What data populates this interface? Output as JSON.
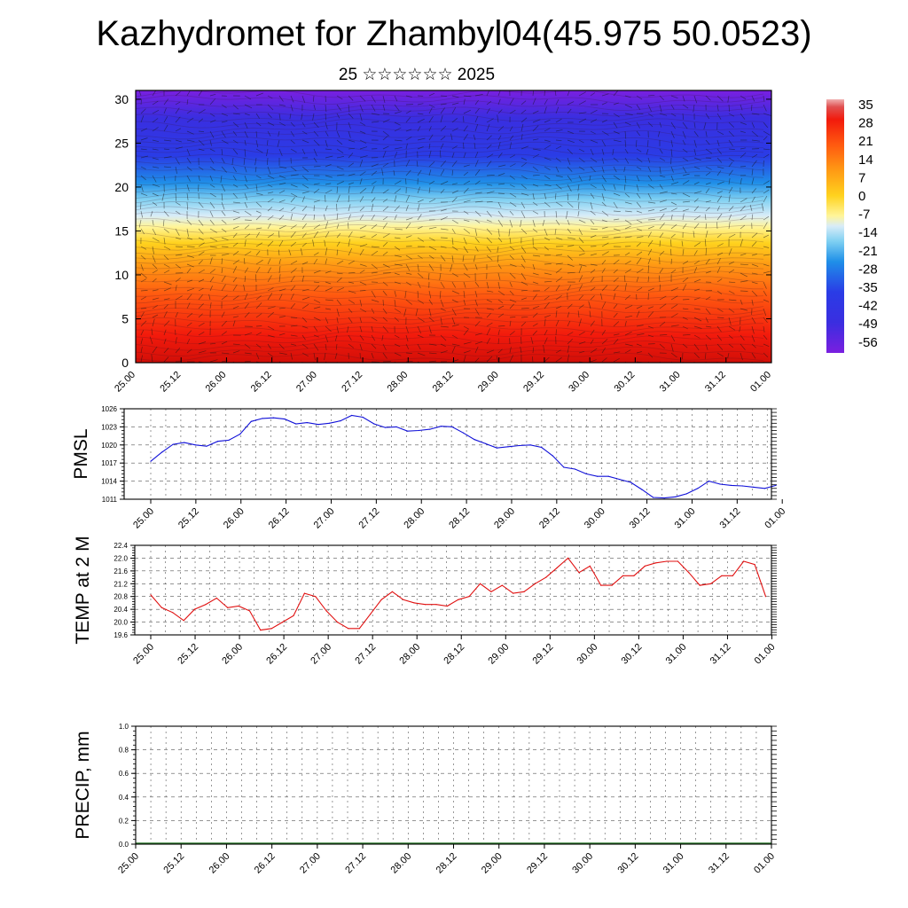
{
  "page": {
    "title": "Kazhydromet for Zhambyl04(45.975 50.0523)",
    "subtitle": "25 ☆☆☆☆☆☆ 2025"
  },
  "chart_data": [
    {
      "type": "heatmap",
      "name": "vertical-temperature-section",
      "title": "",
      "x_tick_labels": [
        "25.00",
        "25.12",
        "26.00",
        "26.12",
        "27.00",
        "27.12",
        "28.00",
        "28.12",
        "29.00",
        "29.12",
        "30.00",
        "30.12",
        "31.00",
        "31.12",
        "01.00"
      ],
      "y_tick_labels": [
        "0",
        "5",
        "10",
        "15",
        "20",
        "25",
        "30"
      ],
      "ylim": [
        0,
        31
      ],
      "colorbar": {
        "labels": [
          "35",
          "28",
          "21",
          "14",
          "7",
          "0",
          "-7",
          "-14",
          "-21",
          "-28",
          "-35",
          "-42",
          "-49",
          "-56"
        ],
        "range": [
          -60,
          38
        ]
      },
      "overlay": "wind vectors",
      "colors": [
        "#7a1fe0",
        "#2a3ce6",
        "#1f8fe8",
        "#7fd0f2",
        "#d8ecf8",
        "#fff59a",
        "#ffd21e",
        "#ff9a14",
        "#ff5a10",
        "#f21a0c",
        "#d20f08"
      ]
    },
    {
      "type": "line",
      "name": "pmsl",
      "ylabel": "PMSL",
      "x_tick_labels": [
        "25.00",
        "25.12",
        "26.00",
        "26.12",
        "27.00",
        "27.12",
        "28.00",
        "28.12",
        "29.00",
        "29.12",
        "30.00",
        "30.12",
        "31.00",
        "31.12",
        "01.00"
      ],
      "y_tick_labels": [
        "1011",
        "1014",
        "1017",
        "1020",
        "1023",
        "1026"
      ],
      "ylim": [
        1011,
        1026
      ],
      "color": "#1010d8",
      "x": [
        0,
        1,
        2,
        3,
        4,
        5,
        6,
        7,
        8,
        9,
        10,
        11,
        12,
        13,
        14,
        15,
        16,
        17,
        18,
        19,
        20,
        21,
        22,
        23,
        24,
        25,
        26,
        27,
        28,
        29,
        30,
        31,
        32,
        33,
        34,
        35,
        36,
        37,
        38,
        39,
        40,
        41,
        42,
        43,
        44,
        45,
        46,
        47,
        48,
        49,
        50,
        51,
        52,
        53,
        54,
        55,
        56
      ],
      "values": [
        1017.3,
        1018.8,
        1020.1,
        1020.4,
        1020.0,
        1019.8,
        1020.6,
        1020.8,
        1021.8,
        1023.9,
        1024.4,
        1024.5,
        1024.3,
        1023.5,
        1023.7,
        1023.4,
        1023.6,
        1024.0,
        1024.9,
        1024.6,
        1023.5,
        1022.9,
        1023.0,
        1022.3,
        1022.4,
        1022.6,
        1023.1,
        1023.0,
        1022.0,
        1020.9,
        1020.2,
        1019.5,
        1019.7,
        1019.9,
        1020.0,
        1019.6,
        1018.2,
        1016.3,
        1016.0,
        1015.2,
        1014.8,
        1014.8,
        1014.3,
        1013.8,
        1012.6,
        1011.3,
        1011.2,
        1011.4,
        1011.9,
        1012.8,
        1014.0,
        1013.5,
        1013.3,
        1013.2,
        1013.0,
        1012.8,
        1013.3
      ]
    },
    {
      "type": "line",
      "name": "temp-2m",
      "ylabel": "TEMP at 2 M",
      "x_tick_labels": [
        "25.00",
        "25.12",
        "26.00",
        "26.12",
        "27.00",
        "27.12",
        "28.00",
        "28.12",
        "29.00",
        "29.12",
        "30.00",
        "30.12",
        "31.00",
        "31.12",
        "01.00"
      ],
      "y_tick_labels": [
        "19.6",
        "20.0",
        "20.4",
        "20.8",
        "21.2",
        "21.6",
        "22.0",
        "22.4"
      ],
      "ylim": [
        19.6,
        22.4
      ],
      "color": "#e01010",
      "x": [
        0,
        1,
        2,
        3,
        4,
        5,
        6,
        7,
        8,
        9,
        10,
        11,
        12,
        13,
        14,
        15,
        16,
        17,
        18,
        19,
        20,
        21,
        22,
        23,
        24,
        25,
        26,
        27,
        28,
        29,
        30,
        31,
        32,
        33,
        34,
        35,
        36,
        37,
        38,
        39,
        40,
        41,
        42,
        43,
        44,
        45,
        46,
        47,
        48,
        49,
        50,
        51,
        52,
        53,
        54,
        55,
        56
      ],
      "values": [
        20.85,
        20.45,
        20.3,
        20.05,
        20.4,
        20.55,
        20.75,
        20.45,
        20.5,
        20.35,
        19.75,
        19.8,
        20.0,
        20.2,
        20.9,
        20.8,
        20.35,
        20.0,
        19.8,
        19.8,
        20.25,
        20.7,
        20.95,
        20.7,
        20.6,
        20.55,
        20.55,
        20.5,
        20.7,
        20.8,
        21.2,
        20.95,
        21.15,
        20.9,
        20.95,
        21.2,
        21.4,
        21.7,
        22.0,
        21.55,
        21.75,
        21.15,
        21.15,
        21.45,
        21.45,
        21.75,
        21.85,
        21.9,
        21.9,
        21.55,
        21.15,
        21.2,
        21.45,
        21.45,
        21.9,
        21.8,
        20.8
      ]
    },
    {
      "type": "bar",
      "name": "precip",
      "ylabel": "PRECIP, mm",
      "x_tick_labels": [
        "25.00",
        "25.12",
        "26.00",
        "26.12",
        "27.00",
        "27.12",
        "28.00",
        "28.12",
        "29.00",
        "29.12",
        "30.00",
        "30.12",
        "31.00",
        "31.12",
        "01.00"
      ],
      "y_tick_labels": [
        "0.0",
        "0.2",
        "0.4",
        "0.6",
        "0.8",
        "1.0"
      ],
      "ylim": [
        0,
        1
      ],
      "color": "#2a7a2a",
      "values": [
        0,
        0,
        0,
        0,
        0,
        0,
        0,
        0,
        0,
        0,
        0,
        0,
        0,
        0,
        0,
        0,
        0,
        0,
        0,
        0,
        0,
        0,
        0,
        0,
        0,
        0,
        0,
        0,
        0,
        0,
        0,
        0,
        0,
        0,
        0,
        0,
        0,
        0,
        0,
        0,
        0,
        0,
        0,
        0,
        0,
        0,
        0,
        0,
        0,
        0,
        0,
        0,
        0,
        0,
        0,
        0,
        0
      ]
    }
  ]
}
